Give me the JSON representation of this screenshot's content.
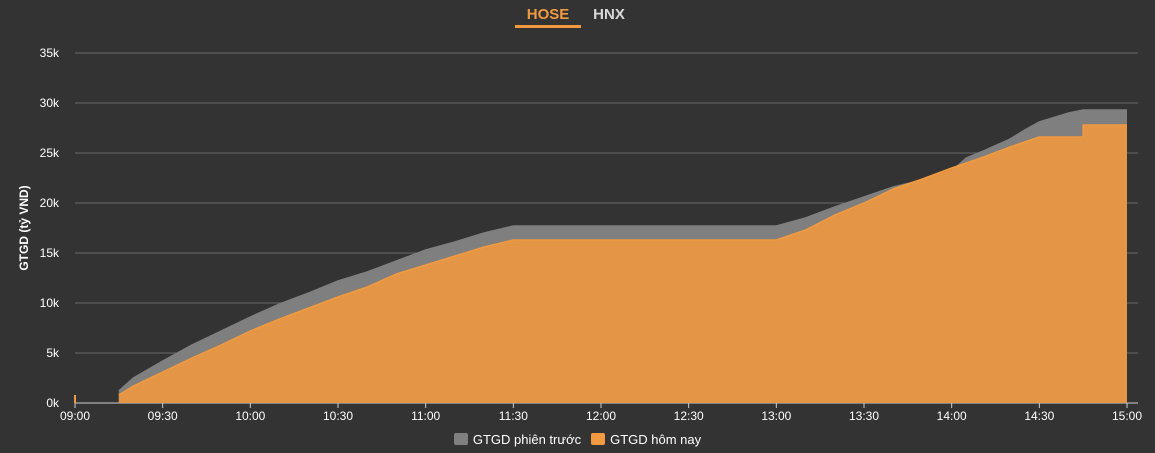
{
  "tabs": [
    {
      "label": "HOSE",
      "active": true
    },
    {
      "label": "HNX",
      "active": false
    }
  ],
  "chart_data": {
    "type": "area",
    "title": "",
    "xlabel": "",
    "ylabel": "GTGD (tỷ VND)",
    "xlim": [
      "09:00",
      "15:00"
    ],
    "ylim": [
      0,
      35000
    ],
    "grid": true,
    "legend_position": "bottom-center",
    "x_ticks": [
      "09:00",
      "09:30",
      "10:00",
      "10:30",
      "11:00",
      "11:30",
      "12:00",
      "12:30",
      "13:00",
      "13:30",
      "14:00",
      "14:30",
      "15:00"
    ],
    "y_ticks": [
      {
        "value": 0,
        "label": "0k"
      },
      {
        "value": 5000,
        "label": "5k"
      },
      {
        "value": 10000,
        "label": "10k"
      },
      {
        "value": 15000,
        "label": "15k"
      },
      {
        "value": 20000,
        "label": "20k"
      },
      {
        "value": 25000,
        "label": "25k"
      },
      {
        "value": 30000,
        "label": "30k"
      },
      {
        "value": 35000,
        "label": "35k"
      }
    ],
    "series": [
      {
        "name": "GTGD phiên trước",
        "color": "#7f7f7f",
        "points": [
          [
            "09:15",
            0
          ],
          [
            "09:15",
            1200
          ],
          [
            "09:20",
            2500
          ],
          [
            "09:30",
            4200
          ],
          [
            "09:40",
            5800
          ],
          [
            "09:50",
            7200
          ],
          [
            "10:00",
            8600
          ],
          [
            "10:10",
            9900
          ],
          [
            "10:20",
            11000
          ],
          [
            "10:30",
            12200
          ],
          [
            "10:40",
            13100
          ],
          [
            "10:50",
            14200
          ],
          [
            "11:00",
            15300
          ],
          [
            "11:10",
            16100
          ],
          [
            "11:20",
            17000
          ],
          [
            "11:30",
            17700
          ],
          [
            "12:00",
            17700
          ],
          [
            "12:30",
            17700
          ],
          [
            "13:00",
            17700
          ],
          [
            "13:10",
            18500
          ],
          [
            "13:20",
            19600
          ],
          [
            "13:30",
            20600
          ],
          [
            "13:40",
            21600
          ],
          [
            "13:50",
            22300
          ],
          [
            "14:00",
            23200
          ],
          [
            "14:05",
            24500
          ],
          [
            "14:10",
            25100
          ],
          [
            "14:20",
            26400
          ],
          [
            "14:25",
            27300
          ],
          [
            "14:30",
            28100
          ],
          [
            "14:40",
            29000
          ],
          [
            "14:45",
            29300
          ],
          [
            "15:00",
            29300
          ],
          [
            "15:00",
            0
          ]
        ]
      },
      {
        "name": "GTGD hôm nay",
        "color": "#f29a3f",
        "points": [
          [
            "09:15",
            0
          ],
          [
            "09:15",
            800
          ],
          [
            "09:20",
            1700
          ],
          [
            "09:30",
            3100
          ],
          [
            "09:40",
            4500
          ],
          [
            "09:50",
            5800
          ],
          [
            "10:00",
            7200
          ],
          [
            "10:10",
            8400
          ],
          [
            "10:20",
            9500
          ],
          [
            "10:30",
            10600
          ],
          [
            "10:40",
            11600
          ],
          [
            "10:50",
            12900
          ],
          [
            "11:00",
            13800
          ],
          [
            "11:10",
            14700
          ],
          [
            "11:20",
            15600
          ],
          [
            "11:30",
            16300
          ],
          [
            "12:00",
            16300
          ],
          [
            "12:30",
            16300
          ],
          [
            "13:00",
            16300
          ],
          [
            "13:10",
            17300
          ],
          [
            "13:20",
            18800
          ],
          [
            "13:30",
            20000
          ],
          [
            "13:40",
            21400
          ],
          [
            "13:50",
            22400
          ],
          [
            "14:00",
            23500
          ],
          [
            "14:10",
            24500
          ],
          [
            "14:20",
            25600
          ],
          [
            "14:30",
            26600
          ],
          [
            "14:45",
            26600
          ],
          [
            "14:45",
            27800
          ],
          [
            "15:00",
            27800
          ],
          [
            "15:00",
            0
          ]
        ]
      }
    ],
    "marker": {
      "time": "09:00",
      "value": 800,
      "color": "#f29a3f"
    }
  }
}
